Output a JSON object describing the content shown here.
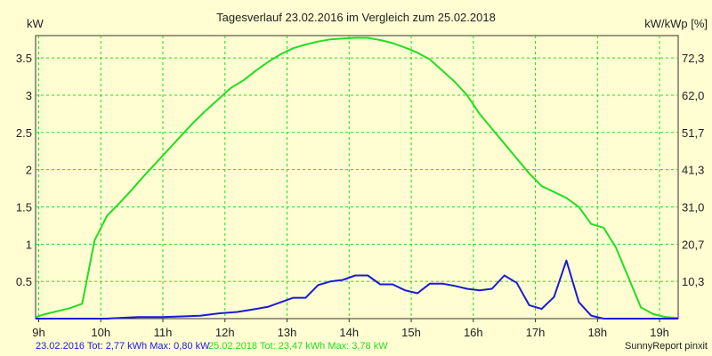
{
  "chart_data": {
    "type": "line",
    "title": "Tagesverlauf 23.02.2016 im Vergleich zum 25.02.2018",
    "ylabel_left": "kW",
    "ylabel_right": "kW/kWp [%]",
    "x_ticks": [
      "9h",
      "10h",
      "11h",
      "12h",
      "13h",
      "14h",
      "15h",
      "16h",
      "17h",
      "18h",
      "19h"
    ],
    "x_tick_values": [
      9,
      10,
      11,
      12,
      13,
      14,
      15,
      16,
      17,
      18,
      19
    ],
    "xlim": [
      8.95,
      19.3
    ],
    "ylim": [
      0,
      3.8
    ],
    "y_ticks_left": [
      "0.5",
      "1",
      "1.5",
      "2",
      "2.5",
      "3",
      "3.5"
    ],
    "y_tick_values_left": [
      0.5,
      1,
      1.5,
      2,
      2.5,
      3,
      3.5
    ],
    "y_ticks_right": [
      "10,3",
      "20,7",
      "31,0",
      "41,3",
      "51,7",
      "62,0",
      "72,3"
    ],
    "grid": true,
    "series": [
      {
        "name": "25.02.2018",
        "color": "#22dd22",
        "x": [
          8.95,
          9.1,
          9.25,
          9.5,
          9.7,
          9.9,
          10.1,
          10.3,
          10.5,
          10.7,
          10.9,
          11.1,
          11.3,
          11.5,
          11.7,
          11.9,
          12.1,
          12.3,
          12.5,
          12.7,
          12.9,
          13.1,
          13.3,
          13.5,
          13.7,
          13.9,
          14.1,
          14.3,
          14.5,
          14.7,
          14.9,
          15.1,
          15.3,
          15.5,
          15.7,
          15.9,
          16.1,
          16.3,
          16.5,
          16.7,
          16.9,
          17.1,
          17.3,
          17.5,
          17.7,
          17.9,
          18.1,
          18.3,
          18.5,
          18.7,
          18.9,
          19.1,
          19.3
        ],
        "y": [
          0.02,
          0.06,
          0.09,
          0.14,
          0.2,
          1.05,
          1.38,
          1.55,
          1.73,
          1.92,
          2.1,
          2.28,
          2.46,
          2.64,
          2.8,
          2.95,
          3.1,
          3.2,
          3.33,
          3.45,
          3.55,
          3.63,
          3.68,
          3.72,
          3.75,
          3.76,
          3.77,
          3.77,
          3.74,
          3.7,
          3.64,
          3.57,
          3.48,
          3.33,
          3.18,
          3.0,
          2.75,
          2.55,
          2.35,
          2.15,
          1.95,
          1.78,
          1.7,
          1.62,
          1.5,
          1.27,
          1.22,
          0.95,
          0.55,
          0.15,
          0.06,
          0.02,
          0.01
        ]
      },
      {
        "name": "23.02.2016",
        "color": "#1a1ad8",
        "x": [
          8.95,
          9.5,
          10.1,
          10.3,
          10.6,
          11.0,
          11.3,
          11.6,
          11.9,
          12.2,
          12.5,
          12.7,
          12.9,
          13.1,
          13.3,
          13.5,
          13.7,
          13.9,
          14.1,
          14.3,
          14.5,
          14.7,
          14.9,
          15.1,
          15.3,
          15.5,
          15.7,
          15.9,
          16.1,
          16.3,
          16.5,
          16.7,
          16.9,
          17.1,
          17.3,
          17.5,
          17.7,
          17.9,
          18.1,
          18.3,
          18.5,
          18.7,
          18.9,
          19.1,
          19.3
        ],
        "y": [
          0.0,
          0.0,
          0.0,
          0.01,
          0.02,
          0.02,
          0.03,
          0.04,
          0.07,
          0.09,
          0.13,
          0.16,
          0.22,
          0.28,
          0.28,
          0.45,
          0.5,
          0.52,
          0.58,
          0.58,
          0.46,
          0.46,
          0.38,
          0.34,
          0.47,
          0.47,
          0.44,
          0.4,
          0.38,
          0.4,
          0.58,
          0.48,
          0.18,
          0.13,
          0.29,
          0.78,
          0.22,
          0.04,
          0.0,
          0.0,
          0.0,
          0.0,
          0.0,
          0.0,
          0.0
        ]
      }
    ]
  },
  "footer": {
    "series1": "23.02.2016 Tot: 2,77 kWh Max: 0,80 kW",
    "series2": "25.02.2018 Tot: 23,47 kWh Max: 3,78 kW",
    "credit": "SunnyReport pinxit"
  },
  "colors": {
    "background": "#fffdd1",
    "grid": "#22dd22",
    "axis": "#333333"
  }
}
